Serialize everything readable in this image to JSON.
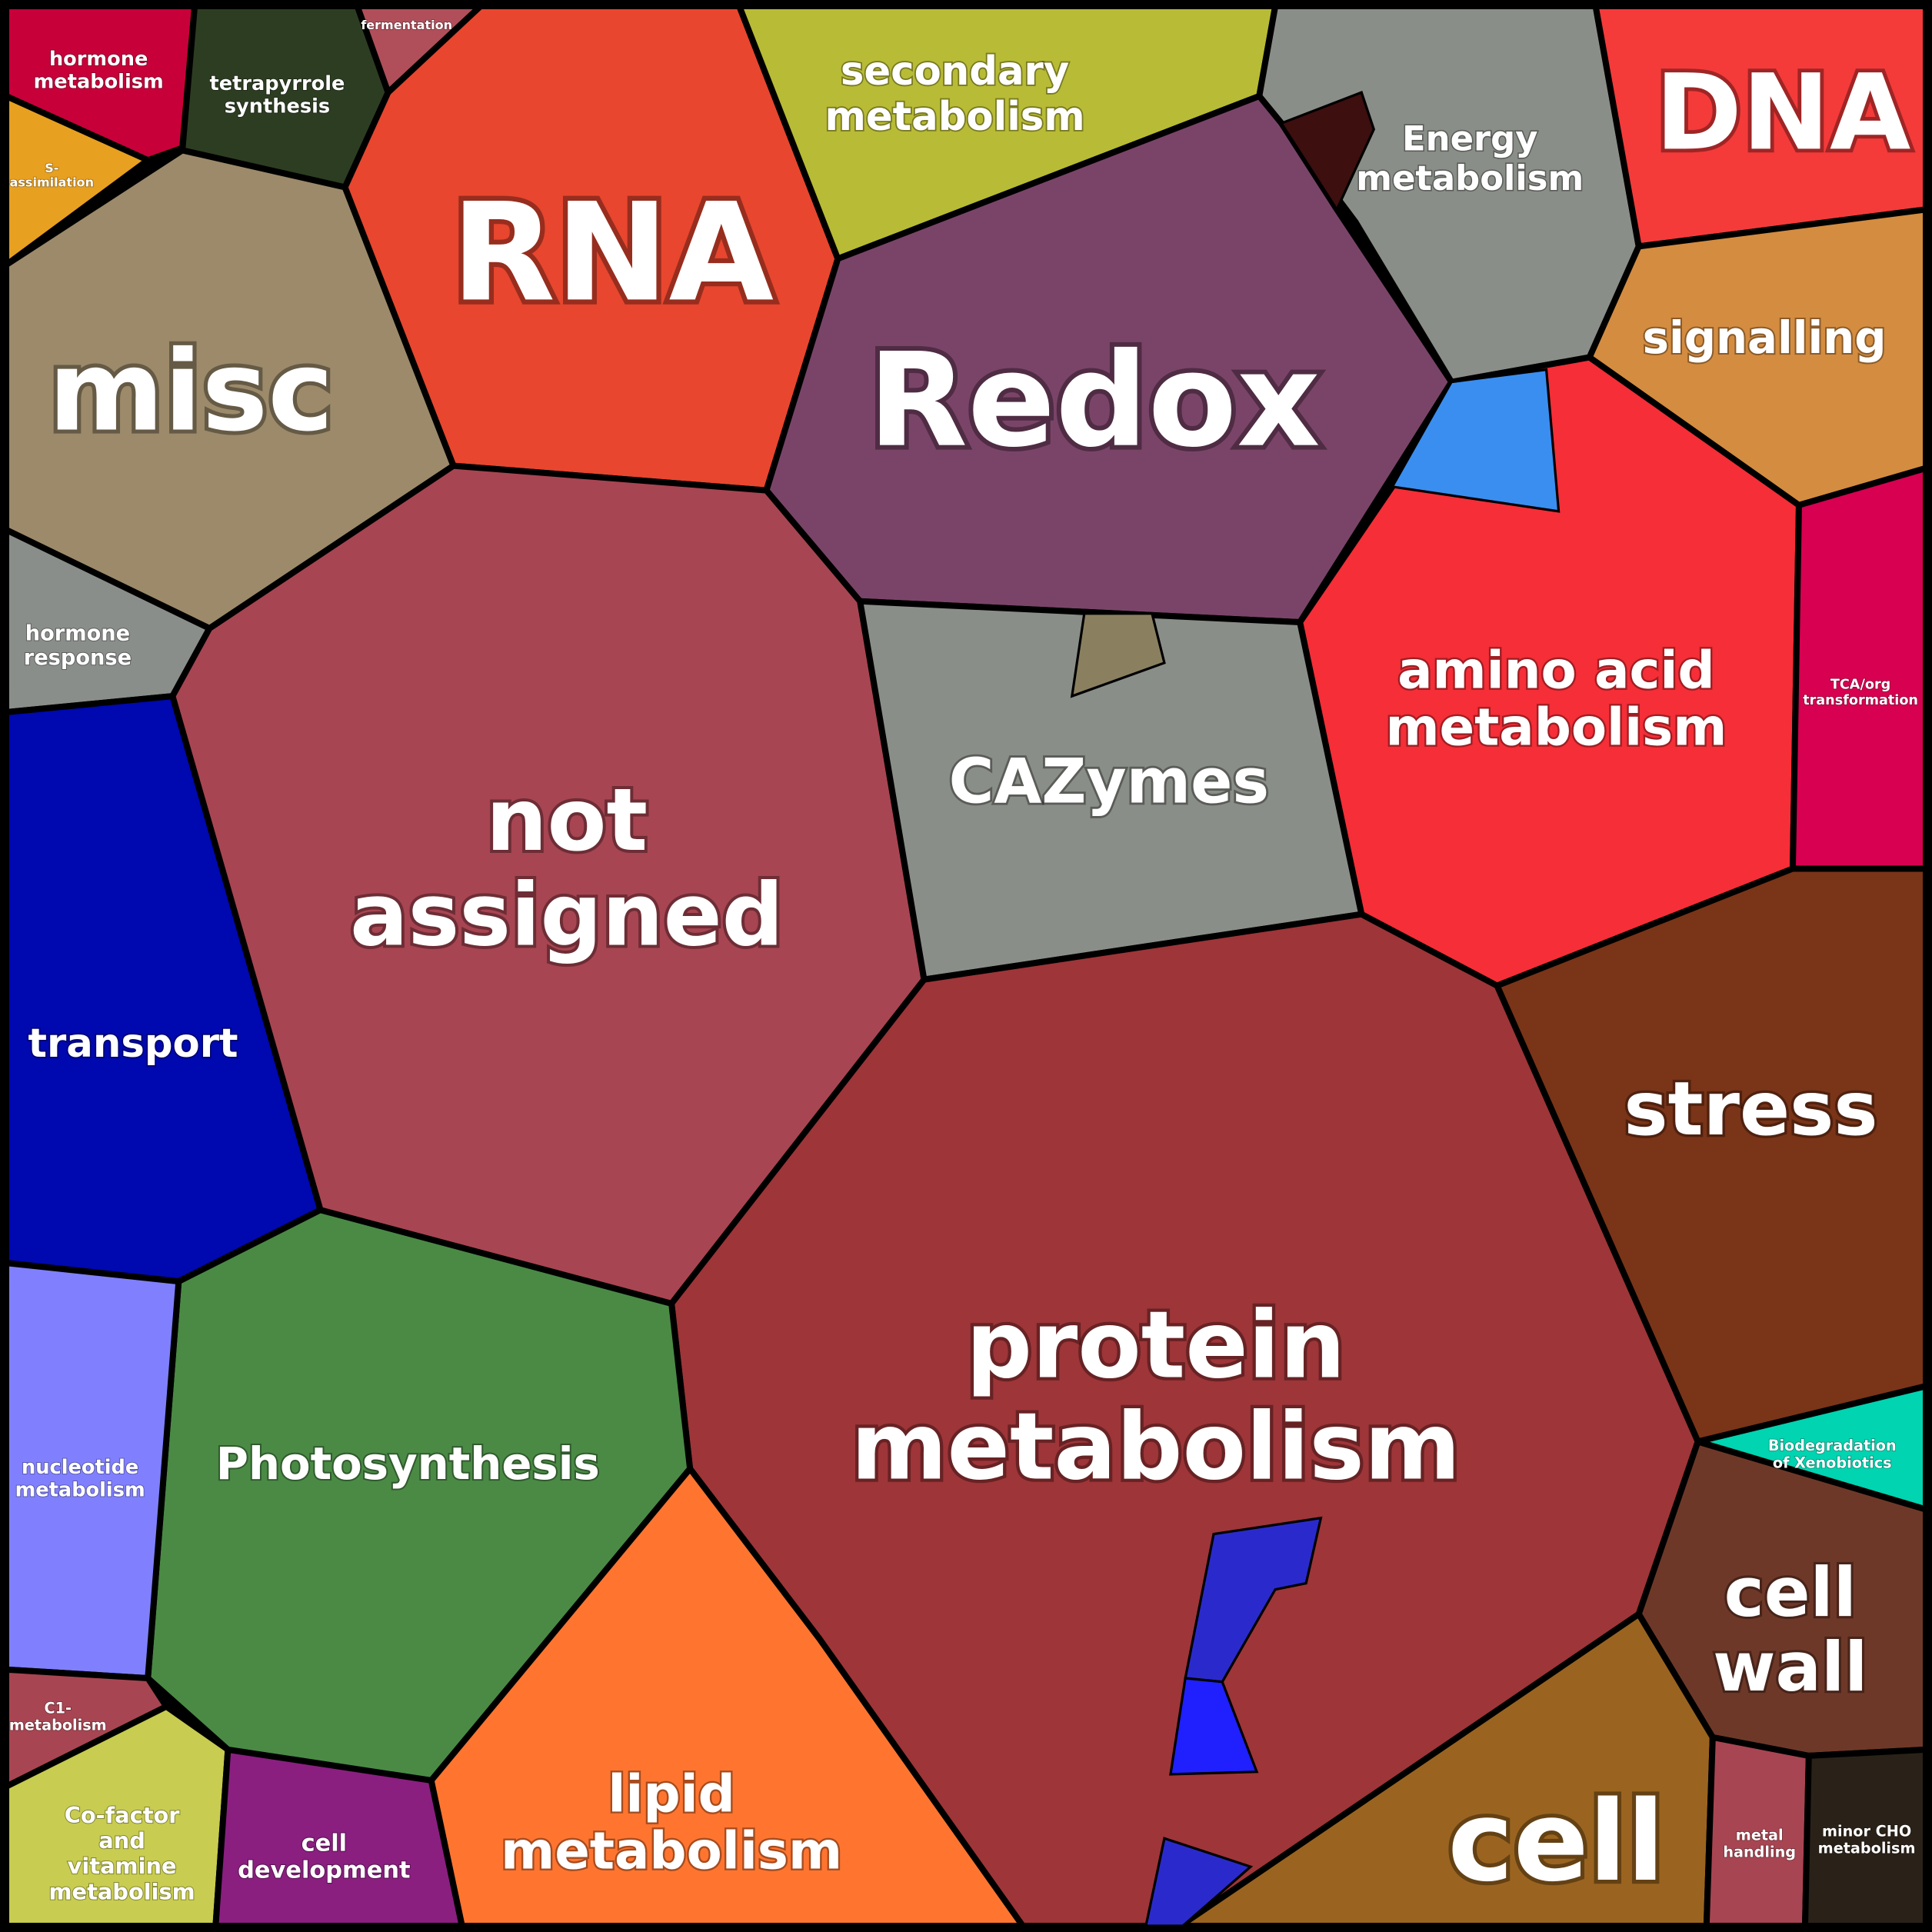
{
  "regions": [
    {
      "lines": [
        "hormone",
        "metabolism"
      ]
    },
    {
      "lines": [
        "tetrapyrrole",
        "synthesis"
      ]
    },
    {
      "lines": [
        "fermentation"
      ]
    },
    {
      "lines": [
        "S-",
        "assimilation"
      ]
    },
    {
      "lines": [
        "misc"
      ]
    },
    {
      "lines": [
        "hormone",
        "response"
      ]
    },
    {
      "lines": [
        "RNA"
      ]
    },
    {
      "lines": [
        "secondary",
        "metabolism"
      ]
    },
    {
      "lines": [
        "Energy",
        "metabolism"
      ]
    },
    {
      "lines": [
        "DNA"
      ]
    },
    {
      "lines": [
        "signalling"
      ]
    },
    {
      "lines": [
        "Redox"
      ]
    },
    {
      "lines": [
        "amino acid",
        "metabolism"
      ]
    },
    {
      "lines": [
        "TCA/org",
        "transformation"
      ]
    },
    {
      "lines": [
        "not",
        "assigned"
      ]
    },
    {
      "lines": [
        "CAZymes"
      ]
    },
    {
      "lines": [
        "transport"
      ]
    },
    {
      "lines": [
        "stress"
      ]
    },
    {
      "lines": [
        "protein",
        "metabolism"
      ]
    },
    {
      "lines": [
        "Photosynthesis"
      ]
    },
    {
      "lines": [
        "nucleotide",
        "metabolism"
      ]
    },
    {
      "lines": [
        "C1-",
        "metabolism"
      ]
    },
    {
      "lines": [
        "Co-factor",
        "and",
        "vitamine",
        "metabolism"
      ]
    },
    {
      "lines": [
        "cell",
        "development"
      ]
    },
    {
      "lines": [
        "lipid",
        "metabolism"
      ]
    },
    {
      "lines": [
        "cell",
        "wall"
      ]
    },
    {
      "lines": [
        "Biodegradation",
        "of Xenobiotics"
      ]
    },
    {
      "lines": [
        "cell"
      ]
    },
    {
      "lines": [
        "metal",
        "handling"
      ]
    },
    {
      "lines": [
        "minor CHO",
        "metabolism"
      ]
    }
  ]
}
